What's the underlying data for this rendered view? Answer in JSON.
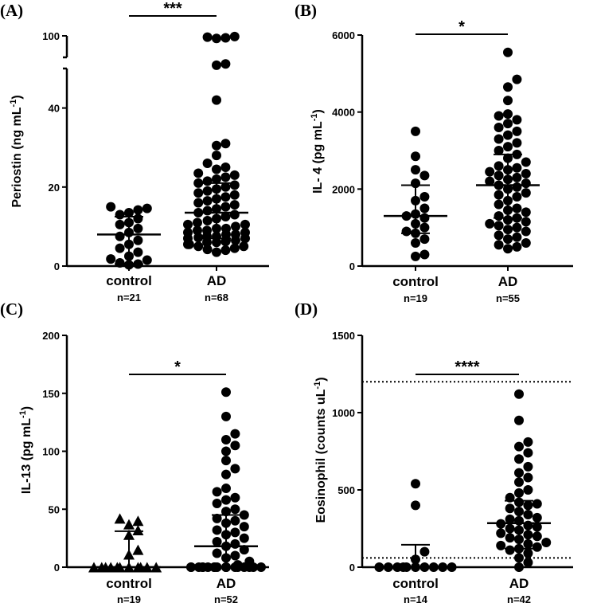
{
  "chart_data": [
    {
      "type": "scatter",
      "panel_label": "(A)",
      "ylabel": "Periostin (ng mL",
      "ylabel_sup": "-1",
      "ylabel_close": ")",
      "ylim": [
        0,
        100
      ],
      "axis_break": [
        50,
        95
      ],
      "yticks": [
        0,
        20,
        40,
        100
      ],
      "ytick_labels": [
        "0",
        "20",
        "40",
        "100"
      ],
      "marker": "circle",
      "significance": "***",
      "groups": [
        {
          "name": "control",
          "n_label": "n=21",
          "median": 8,
          "ci": [
            0.5,
            12.5
          ],
          "values": [
            0.3,
            0.5,
            0.8,
            1.5,
            1.8,
            2.5,
            3.5,
            4.5,
            5.5,
            6.5,
            7.5,
            8.5,
            9.5,
            10.5,
            11.0,
            12.0,
            13.0,
            13.5,
            14.2,
            14.6,
            15.0
          ]
        },
        {
          "name": "AD",
          "n_label": "n=68",
          "median": 13.5,
          "ci": [
            7,
            21
          ],
          "values": [
            3.5,
            4.0,
            4.2,
            4.5,
            5.0,
            5.0,
            5.5,
            5.5,
            6.0,
            6.0,
            6.2,
            6.5,
            6.5,
            7.0,
            7.0,
            7.2,
            7.5,
            7.5,
            8.0,
            8.0,
            8.5,
            8.5,
            9.0,
            9.0,
            9.5,
            9.5,
            10.0,
            10.5,
            10.5,
            11.0,
            11.5,
            12.0,
            12.5,
            13.0,
            13.5,
            14.0,
            14.5,
            15.0,
            15.5,
            16.0,
            16.5,
            17.0,
            17.5,
            18.0,
            18.5,
            19.0,
            19.5,
            20.0,
            20.5,
            21.0,
            21.5,
            22.0,
            22.5,
            23.0,
            23.5,
            24.5,
            25.0,
            26.0,
            28.0,
            30.5,
            31.0,
            42.0,
            55.0,
            57.0,
            96.0,
            97.0,
            98.0,
            99.0
          ]
        }
      ]
    },
    {
      "type": "scatter",
      "panel_label": "(B)",
      "ylabel": "IL- 4 (pg mL",
      "ylabel_sup": "-1",
      "ylabel_close": ")",
      "ylim": [
        0,
        6000
      ],
      "yticks": [
        0,
        2000,
        4000,
        6000
      ],
      "ytick_labels": [
        "0",
        "2000",
        "4000",
        "6000"
      ],
      "marker": "circle",
      "significance": "*",
      "groups": [
        {
          "name": "control",
          "n_label": "n=19",
          "median": 1300,
          "ci": [
            850,
            2100
          ],
          "values": [
            250,
            300,
            600,
            700,
            850,
            900,
            1000,
            1100,
            1250,
            1300,
            1350,
            1500,
            1700,
            1800,
            2150,
            2350,
            2500,
            2850,
            3500
          ]
        },
        {
          "name": "AD",
          "n_label": "n=55",
          "median": 2100,
          "ci": [
            1250,
            2900
          ],
          "values": [
            450,
            500,
            550,
            600,
            700,
            750,
            800,
            900,
            950,
            1000,
            1050,
            1100,
            1150,
            1200,
            1250,
            1300,
            1400,
            1450,
            1500,
            1600,
            1700,
            1800,
            1850,
            1900,
            2000,
            2050,
            2100,
            2150,
            2200,
            2250,
            2300,
            2350,
            2400,
            2450,
            2500,
            2550,
            2600,
            2700,
            2800,
            2900,
            3000,
            3100,
            3200,
            3300,
            3400,
            3500,
            3600,
            3700,
            3800,
            3900,
            3950,
            4300,
            4650,
            4850,
            5550
          ]
        }
      ]
    },
    {
      "type": "scatter",
      "panel_label": "(C)",
      "ylabel": "IL-13 (pg mL",
      "ylabel_sup": "-1",
      "ylabel_close": ")",
      "ylim": [
        0,
        200
      ],
      "yticks": [
        0,
        50,
        100,
        150,
        200
      ],
      "ytick_labels": [
        "0",
        "50",
        "100",
        "150",
        "200"
      ],
      "marker": "triangle",
      "significance": "*",
      "groups": [
        {
          "name": "control",
          "n_label": "n=19",
          "median": 0,
          "ci": [
            0,
            31
          ],
          "marker": "triangle",
          "values": [
            0,
            0,
            0,
            0,
            0,
            0,
            0,
            0,
            0,
            0,
            0,
            0,
            11,
            15,
            28,
            32,
            37,
            40,
            42
          ]
        },
        {
          "name": "AD",
          "n_label": "n=52",
          "median": 18,
          "ci": [
            0,
            45
          ],
          "marker": "circle",
          "values": [
            0,
            0,
            0,
            0,
            0,
            0,
            0,
            0,
            0,
            0,
            0,
            0,
            0,
            0,
            0,
            0,
            0,
            0,
            2,
            5,
            8,
            10,
            12,
            15,
            18,
            20,
            22,
            25,
            28,
            30,
            32,
            35,
            38,
            40,
            42,
            45,
            48,
            50,
            55,
            58,
            60,
            65,
            68,
            80,
            85,
            92,
            100,
            105,
            110,
            115,
            130,
            151
          ]
        }
      ]
    },
    {
      "type": "scatter",
      "panel_label": "(D)",
      "ylabel": "Eosinophil (counts uL",
      "ylabel_sup": "-1",
      "ylabel_close": ")",
      "ylim": [
        0,
        1500
      ],
      "yticks": [
        0,
        500,
        1000,
        1500
      ],
      "ytick_labels": [
        "0",
        "500",
        "1000",
        "1500"
      ],
      "reference_lines": [
        60,
        1200
      ],
      "marker": "circle",
      "significance": "****",
      "groups": [
        {
          "name": "control",
          "n_label": "n=14",
          "median": 0,
          "ci": [
            0,
            145
          ],
          "values": [
            0,
            0,
            0,
            0,
            0,
            0,
            0,
            0,
            0,
            0,
            50,
            100,
            400,
            540
          ]
        },
        {
          "name": "AD",
          "n_label": "n=42",
          "median": 285,
          "ci": [
            120,
            430
          ],
          "values": [
            0,
            30,
            60,
            90,
            110,
            120,
            130,
            140,
            150,
            160,
            180,
            190,
            200,
            210,
            220,
            240,
            250,
            260,
            270,
            280,
            300,
            310,
            320,
            340,
            360,
            380,
            400,
            410,
            420,
            450,
            480,
            500,
            550,
            580,
            610,
            650,
            700,
            740,
            780,
            810,
            950,
            1120
          ]
        }
      ]
    }
  ]
}
